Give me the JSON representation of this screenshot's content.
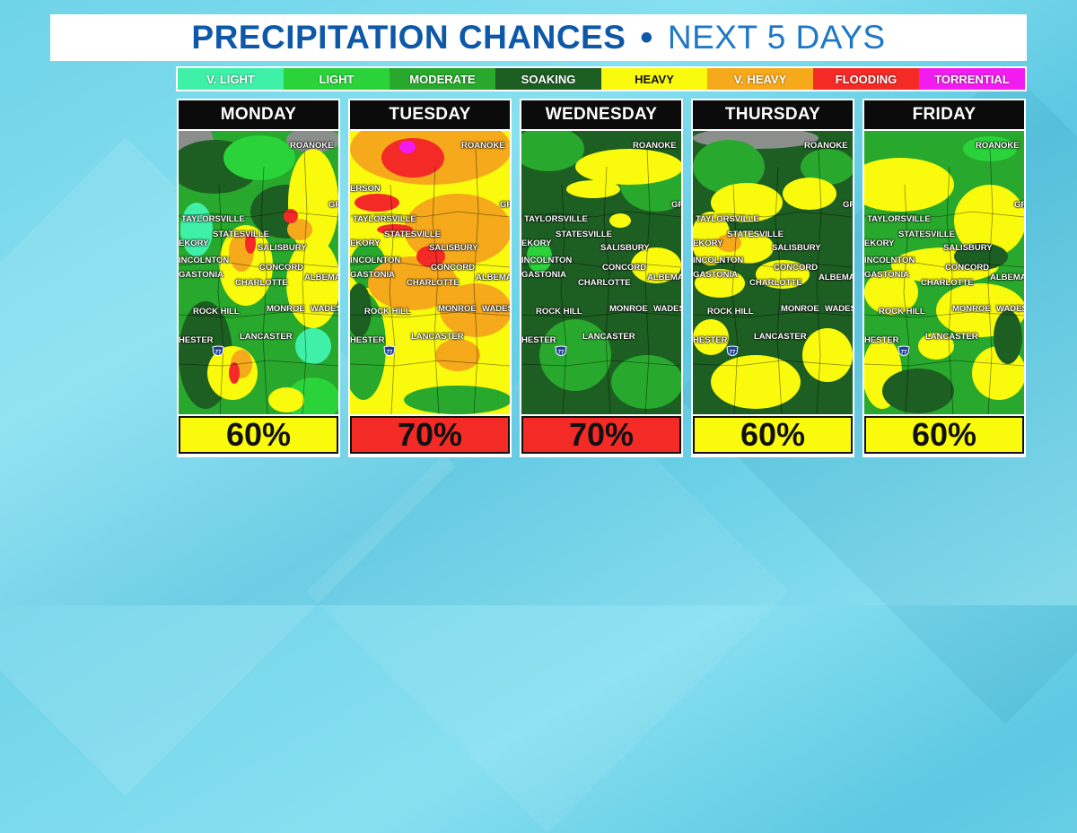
{
  "title": {
    "main": "PRECIPITATION CHANCES",
    "separator": "•",
    "sub": "NEXT 5 DAYS"
  },
  "legend": [
    {
      "label": "V. LIGHT",
      "color": "#3ff0a8",
      "dark_text": false
    },
    {
      "label": "LIGHT",
      "color": "#2bd33b",
      "dark_text": false
    },
    {
      "label": "MODERATE",
      "color": "#28a82c",
      "dark_text": false
    },
    {
      "label": "SOAKING",
      "color": "#1d5e22",
      "dark_text": false
    },
    {
      "label": "HEAVY",
      "color": "#fafb0c",
      "dark_text": true
    },
    {
      "label": "V. HEAVY",
      "color": "#f5a91b",
      "dark_text": false
    },
    {
      "label": "FLOODING",
      "color": "#f42a26",
      "dark_text": false
    },
    {
      "label": "TORRENTIAL",
      "color": "#f21cf0",
      "dark_text": false
    }
  ],
  "cities": {
    "roanoke": "ROANOKE",
    "gre": "GRE",
    "taylorsville": "TAYLORSVILLE",
    "statesville": "STATESVILLE",
    "ekory": "EKORY",
    "salisbury": "SALISBURY",
    "lincolnton": "INCOLNTON",
    "gastonia": "GASTONIA",
    "concord": "CONCORD",
    "albemarle": "ALBEMAR",
    "charlotte": "CHARLOTTE",
    "rock_hill": "ROCK HILL",
    "monroe": "MONROE",
    "wadesboro": "WADES",
    "chester": "HESTER",
    "lancaster": "LANCASTER",
    "interstate": "77",
    "erson": "ERSON"
  },
  "days": [
    {
      "name": "MONDAY",
      "chance": "60%",
      "chance_color": "#fafb0c",
      "wades_label": "WADES",
      "albemarle_label": "ALBEMAR"
    },
    {
      "name": "TUESDAY",
      "chance": "70%",
      "chance_color": "#f42a26",
      "wades_label": "WADESB",
      "albemarle_label": "ALBEMA"
    },
    {
      "name": "WEDNESDAY",
      "chance": "70%",
      "chance_color": "#f42a26",
      "wades_label": "WADES",
      "albemarle_label": "ALBEMAR"
    },
    {
      "name": "THURSDAY",
      "chance": "60%",
      "chance_color": "#fafb0c",
      "wades_label": "WADES",
      "albemarle_label": "ALBEMAR"
    },
    {
      "name": "FRIDAY",
      "chance": "60%",
      "chance_color": "#fafb0c",
      "wades_label": "WADES",
      "albemarle_label": "ALBEMAR"
    }
  ]
}
